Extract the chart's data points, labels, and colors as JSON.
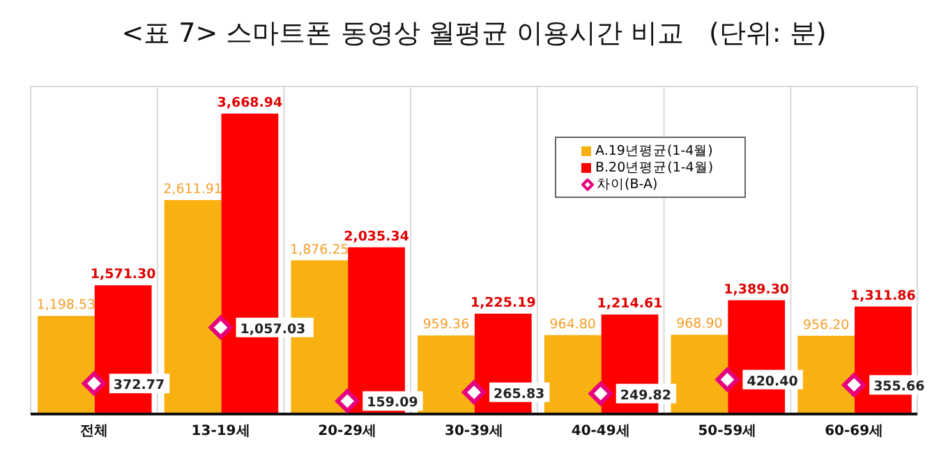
{
  "chart_data": {
    "type": "bar",
    "title": "<표 7> 스마트폰 동영상 월평균 이용시간 비교   (단위: 분)",
    "categories": [
      "전체",
      "13-19세",
      "20-29세",
      "30-39세",
      "40-49세",
      "50-59세",
      "60-69세"
    ],
    "series": [
      {
        "name": "A.19년평균(1-4월)",
        "color": "#f9b011",
        "values": [
          1198.53,
          2611.91,
          1876.25,
          959.36,
          964.8,
          968.9,
          956.2
        ],
        "value_labels": [
          "1,198.53",
          "2,611.91",
          "1,876.25",
          "959.36",
          "964.80",
          "968.90",
          "956.20"
        ]
      },
      {
        "name": "B.20년평균(1-4월)",
        "color": "#ff0000",
        "values": [
          1571.3,
          3668.94,
          2035.34,
          1225.19,
          1214.61,
          1389.3,
          1311.86
        ],
        "value_labels": [
          "1,571.30",
          "3,668.94",
          "2,035.34",
          "1,225.19",
          "1,214.61",
          "1,389.30",
          "1,311.86"
        ]
      },
      {
        "name": "차이(B-A)",
        "type": "scatter",
        "color": "#e6007e",
        "marker": "diamond",
        "values": [
          372.77,
          1057.03,
          159.09,
          265.83,
          249.82,
          420.4,
          355.66
        ],
        "value_labels": [
          "372.77",
          "1,057.03",
          "159.09",
          "265.83",
          "249.82",
          "420.40",
          "355.66"
        ]
      }
    ],
    "ylim": [
      0,
      4000
    ],
    "tick_labels": "x",
    "grid": true,
    "legend": "top"
  }
}
